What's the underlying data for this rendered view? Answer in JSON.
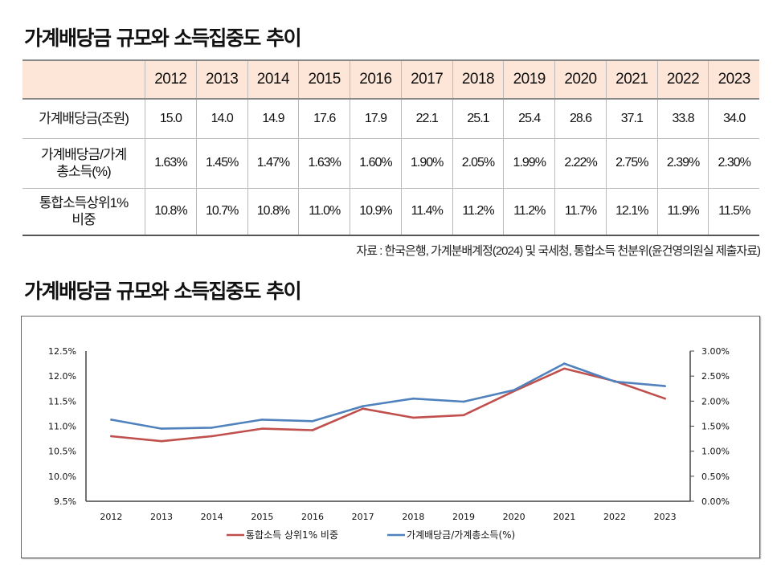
{
  "page": {
    "title_top": "가계배당금 규모와 소득집중도 추이",
    "title_chart": "가계배당금 규모와 소득집중도 추이",
    "source": "자료 : 한국은행, 가계분배계정(2024) 및 국세청, 통합소득 천분위(윤건영의원실 제출자료)"
  },
  "table": {
    "years": [
      "2012",
      "2013",
      "2014",
      "2015",
      "2016",
      "2017",
      "2018",
      "2019",
      "2020",
      "2021",
      "2022",
      "2023"
    ],
    "rows": [
      {
        "label": "가계배당금(조원)",
        "values": [
          "15.0",
          "14.0",
          "14.9",
          "17.6",
          "17.9",
          "22.1",
          "25.1",
          "25.4",
          "28.6",
          "37.1",
          "33.8",
          "34.0"
        ]
      },
      {
        "label": "가계배당금/가계 총소득(%)",
        "values": [
          "1.63%",
          "1.45%",
          "1.47%",
          "1.63%",
          "1.60%",
          "1.90%",
          "2.05%",
          "1.99%",
          "2.22%",
          "2.75%",
          "2.39%",
          "2.30%"
        ]
      },
      {
        "label": "통합소득상위1% 비중",
        "values": [
          "10.8%",
          "10.7%",
          "10.8%",
          "11.0%",
          "10.9%",
          "11.4%",
          "11.2%",
          "11.2%",
          "11.7%",
          "12.1%",
          "11.9%",
          "11.5%"
        ]
      }
    ]
  },
  "chart_data": {
    "type": "line",
    "title": "가계배당금 규모와 소득집중도 추이",
    "x": [
      "2012",
      "2013",
      "2014",
      "2015",
      "2016",
      "2017",
      "2018",
      "2019",
      "2020",
      "2021",
      "2022",
      "2023"
    ],
    "series": [
      {
        "name": "통합소득 상위1% 비중",
        "axis": "left",
        "color": "#c0504d",
        "values": [
          10.8,
          10.7,
          10.8,
          10.95,
          10.92,
          11.35,
          11.17,
          11.22,
          11.7,
          12.15,
          11.9,
          11.55
        ]
      },
      {
        "name": "가계배당금/가계총소득(%)",
        "axis": "right",
        "color": "#4f81bd",
        "values": [
          1.63,
          1.45,
          1.47,
          1.63,
          1.6,
          1.9,
          2.05,
          1.99,
          2.22,
          2.75,
          2.39,
          2.3
        ]
      }
    ],
    "y_left": {
      "min": 9.5,
      "max": 12.5,
      "step": 0.5,
      "ticks": [
        "12.5%",
        "12.0%",
        "11.5%",
        "11.0%",
        "10.5%",
        "10.0%",
        "9.5%"
      ]
    },
    "y_right": {
      "min": 0,
      "max": 3.0,
      "step": 0.5,
      "ticks": [
        "3.00%",
        "2.50%",
        "2.00%",
        "1.50%",
        "1.00%",
        "0.50%",
        "0.00%"
      ]
    },
    "grid": false,
    "legend": "bottom"
  }
}
